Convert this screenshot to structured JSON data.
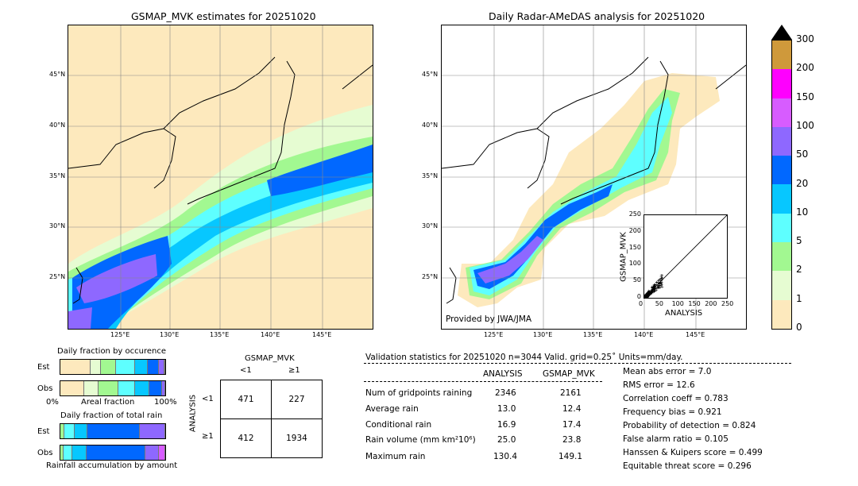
{
  "left_map": {
    "title": "GSMAP_MVK estimates for 20251020",
    "lat_labels": [
      "45°N",
      "40°N",
      "35°N",
      "30°N",
      "25°N"
    ],
    "lon_labels": [
      "125°E",
      "130°E",
      "135°E",
      "140°E",
      "145°E"
    ]
  },
  "right_map": {
    "title": "Daily Radar-AMeDAS analysis for 20251020",
    "lat_labels": [
      "45°N",
      "40°N",
      "35°N",
      "30°N",
      "25°N"
    ],
    "lon_labels": [
      "125°E",
      "130°E",
      "135°E",
      "140°E",
      "145°E"
    ],
    "credit": "Provided by JWA/JMA"
  },
  "colorbar": {
    "labels": [
      "0",
      "1",
      "2",
      "5",
      "10",
      "20",
      "50",
      "100",
      "150",
      "200",
      "300"
    ],
    "colors": [
      "#fde9bd",
      "#e6fcd2",
      "#a2f891",
      "#5effff",
      "#07c7ff",
      "#0168ff",
      "#8e68ff",
      "#d75cff",
      "#fe00fe",
      "#cf993b"
    ]
  },
  "scatter_inset": {
    "xlabel": "ANALYSIS",
    "ylabel": "GSMAP_MVK",
    "ticks": [
      "0",
      "50",
      "100",
      "150",
      "200",
      "250"
    ]
  },
  "occurrence": {
    "title": "Daily fraction by occurence",
    "row_labels": [
      "Est",
      "Obs"
    ],
    "axis_left": "0%",
    "axis_mid": "Areal fraction",
    "axis_right": "100%",
    "est": [
      {
        "c": "#fde9bd",
        "w": 0.29
      },
      {
        "c": "#e6fcd2",
        "w": 0.1
      },
      {
        "c": "#a2f891",
        "w": 0.14
      },
      {
        "c": "#5effff",
        "w": 0.18
      },
      {
        "c": "#07c7ff",
        "w": 0.12
      },
      {
        "c": "#0168ff",
        "w": 0.11
      },
      {
        "c": "#8e68ff",
        "w": 0.05
      },
      {
        "c": "#d75cff",
        "w": 0.01
      }
    ],
    "obs": [
      {
        "c": "#fde9bd",
        "w": 0.23
      },
      {
        "c": "#e6fcd2",
        "w": 0.13
      },
      {
        "c": "#a2f891",
        "w": 0.19
      },
      {
        "c": "#5effff",
        "w": 0.16
      },
      {
        "c": "#07c7ff",
        "w": 0.14
      },
      {
        "c": "#0168ff",
        "w": 0.12
      },
      {
        "c": "#8e68ff",
        "w": 0.03
      }
    ]
  },
  "total_rain": {
    "title": "Daily fraction of total rain",
    "row_labels": [
      "Est",
      "Obs"
    ],
    "axis_mid": "Rainfall accumulation by amount",
    "est": [
      {
        "c": "#a2f891",
        "w": 0.04
      },
      {
        "c": "#5effff",
        "w": 0.1
      },
      {
        "c": "#07c7ff",
        "w": 0.12
      },
      {
        "c": "#0168ff",
        "w": 0.5
      },
      {
        "c": "#8e68ff",
        "w": 0.24
      }
    ],
    "obs": [
      {
        "c": "#a2f891",
        "w": 0.03
      },
      {
        "c": "#5effff",
        "w": 0.08
      },
      {
        "c": "#07c7ff",
        "w": 0.14
      },
      {
        "c": "#0168ff",
        "w": 0.56
      },
      {
        "c": "#8e68ff",
        "w": 0.13
      },
      {
        "c": "#d75cff",
        "w": 0.06
      }
    ]
  },
  "contingency": {
    "title": "GSMAP_MVK",
    "col_labels": [
      "<1",
      "≥1"
    ],
    "row_axis": "ANALYSIS",
    "row_labels": [
      "<1",
      "≥1"
    ],
    "cells": [
      [
        "471",
        "227"
      ],
      [
        "412",
        "1934"
      ]
    ]
  },
  "validation": {
    "header": "Validation statistics for 20251020  n=3044 Valid. grid=0.25˚ Units=mm/day.",
    "col_analysis": "ANALYSIS",
    "col_gsmap": "GSMAP_MVK",
    "rows": [
      {
        "label": "Num of gridpoints raining",
        "a": "2346",
        "g": "2161"
      },
      {
        "label": "Average rain",
        "a": "13.0",
        "g": "12.4"
      },
      {
        "label": "Conditional rain",
        "a": "16.9",
        "g": "17.4"
      },
      {
        "label": "Rain volume (mm km²10⁶)",
        "a": "25.0",
        "g": "23.8"
      },
      {
        "label": "Maximum rain",
        "a": "130.4",
        "g": "149.1"
      }
    ],
    "scores": [
      "Mean abs error =    7.0",
      "RMS error =   12.6",
      "Correlation coeff =  0.783",
      "Frequency bias =  0.921",
      "Probability of detection =  0.824",
      "False alarm ratio =  0.105",
      "Hanssen & Kuipers score =  0.499",
      "Equitable threat score =  0.296"
    ]
  },
  "chart_data": {
    "type": "scatter",
    "title": "",
    "xlabel": "ANALYSIS",
    "ylabel": "GSMAP_MVK",
    "xlim": [
      0,
      250
    ],
    "ylim": [
      0,
      250
    ]
  }
}
